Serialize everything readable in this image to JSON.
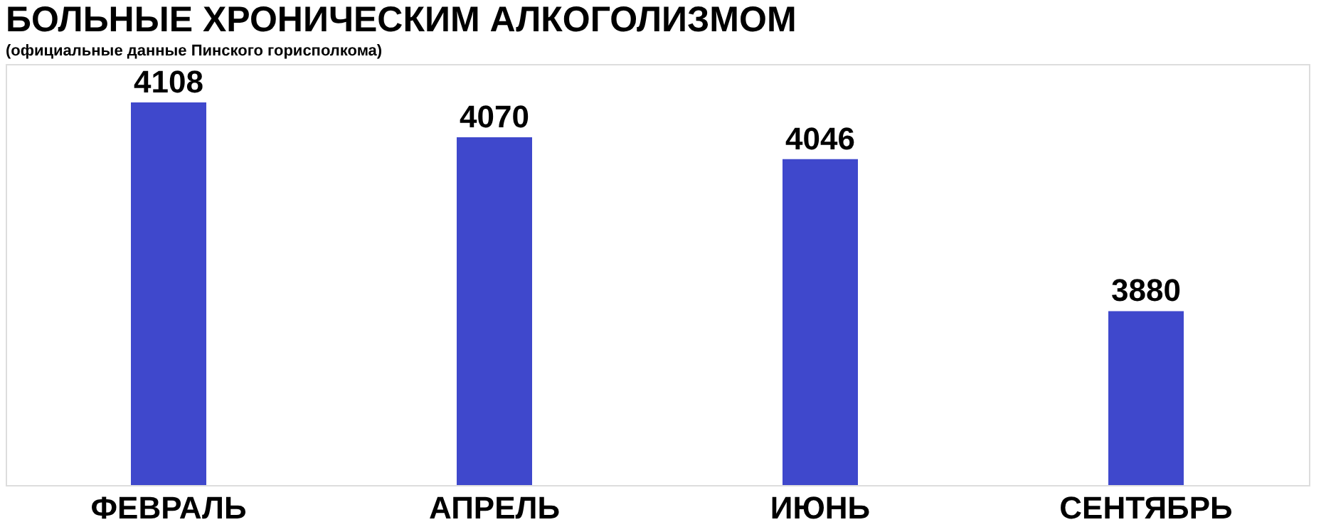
{
  "chart_data": {
    "type": "bar",
    "title": "БОЛЬНЫЕ ХРОНИЧЕСКИМ АЛКОГОЛИЗМОМ",
    "subtitle": "(официальные данные Пинского горисполкома)",
    "categories": [
      "ФЕВРАЛЬ",
      "АПРЕЛЬ",
      "ИЮНЬ",
      "СЕНТЯБРЬ"
    ],
    "values": [
      4108,
      4070,
      4046,
      3880
    ],
    "color": "#3f48cc",
    "ylim": [
      3690,
      4150
    ],
    "data_labels": true,
    "tick_labels": "x",
    "grid": false
  }
}
